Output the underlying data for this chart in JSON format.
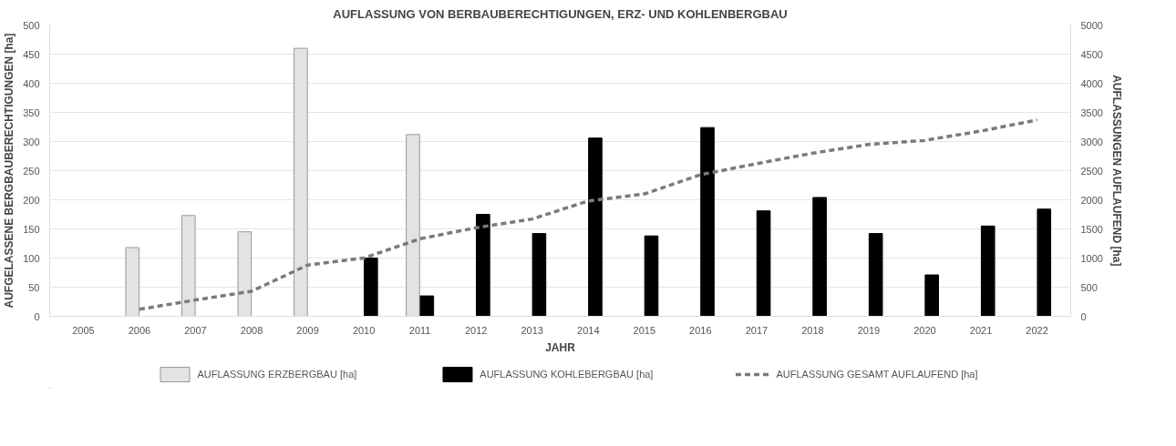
{
  "chart_data": {
    "type": "bar",
    "title": "AUFLASSUNG VON BERBAUBERECHTIGUNGEN, ERZ- UND KOHLENBERGBAU",
    "xlabel": "JAHR",
    "ylabel": "AUFGELASSENE BERGBAUBERECHTIGUNGEN [ha]",
    "y2label": "AUFLASSUNGEN AUFLAUFEND [ha]",
    "categories": [
      "2005",
      "2006",
      "2007",
      "2008",
      "2009",
      "2010",
      "2011",
      "2012",
      "2013",
      "2014",
      "2015",
      "2016",
      "2017",
      "2018",
      "2019",
      "2020",
      "2021",
      "2022"
    ],
    "series": [
      {
        "name": "AUFLASSUNG ERZBERGBAU [ha]",
        "color": "#e3e3e3",
        "values": [
          null,
          118,
          173,
          145,
          460,
          null,
          312,
          null,
          null,
          null,
          null,
          null,
          null,
          null,
          null,
          null,
          null,
          null
        ]
      },
      {
        "name": "AUFLASSUNG KOHLEBERGBAU [ha]",
        "color": "#000000",
        "values": [
          null,
          null,
          null,
          null,
          null,
          100,
          35,
          175,
          142,
          306,
          138,
          324,
          181,
          204,
          142,
          71,
          155,
          184
        ]
      },
      {
        "name": "AUFLASSUNG GESAMT AUFLAUFEND [ha]",
        "type": "line",
        "axis": "y2",
        "line_style": "dashed",
        "color": "#7a7a7a",
        "values": [
          null,
          120,
          280,
          430,
          880,
          1000,
          1330,
          1520,
          1670,
          1980,
          2100,
          2430,
          2620,
          2800,
          2950,
          3020,
          3180,
          3370
        ]
      }
    ],
    "ylim": [
      0,
      500
    ],
    "yticks": [
      0,
      50,
      100,
      150,
      200,
      250,
      300,
      350,
      400,
      450,
      500
    ],
    "y2lim": [
      0,
      5000
    ],
    "y2ticks": [
      0,
      500,
      1000,
      1500,
      2000,
      2500,
      3000,
      3500,
      4000,
      4500,
      5000
    ],
    "grid": "y",
    "legend": "bottom"
  }
}
